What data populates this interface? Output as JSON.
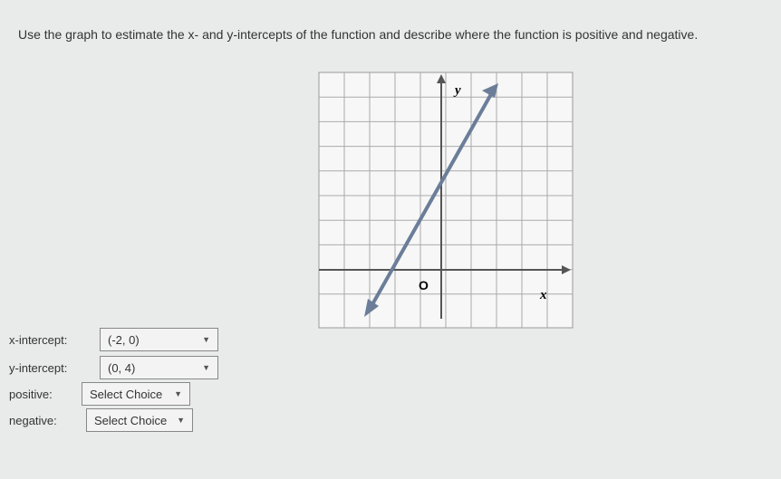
{
  "question": "Use the graph to estimate the x- and y-intercepts of the function and describe where the function is positive and negative.",
  "graph": {
    "y_label": "y",
    "x_label": "x",
    "origin_label": "O"
  },
  "form": [
    {
      "label": "x-intercept:",
      "value": "(-2, 0)"
    },
    {
      "label": "y-intercept:",
      "value": "(0, 4)"
    },
    {
      "label": "positive:",
      "value": "Select Choice"
    },
    {
      "label": "negative:",
      "value": "Select Choice"
    }
  ]
}
